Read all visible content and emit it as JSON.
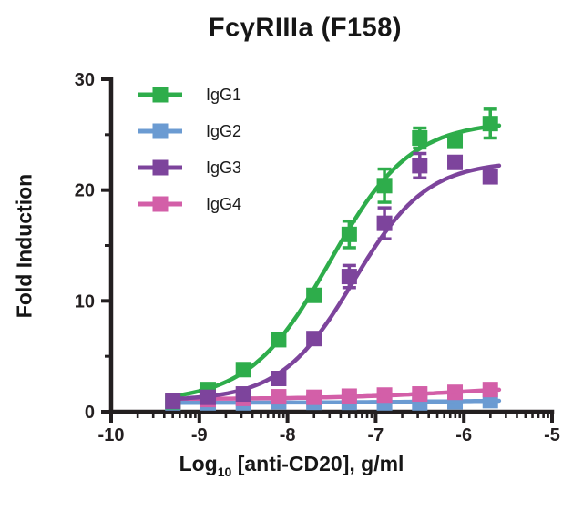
{
  "title": "FcγRIIIa (F158)",
  "axes": {
    "y_label": "Fold Induction",
    "x_label_prefix": "Log",
    "x_label_sub": "10",
    "x_label_rest": " [anti-CD20], g/ml"
  },
  "chart_data": {
    "type": "scatter",
    "title": "FcγRIIIa (F158)",
    "xlabel": "Log10 [anti-CD20], g/ml",
    "ylabel": "Fold Induction",
    "x_scale": "log10_exponent",
    "xlim": [
      -10,
      -5
    ],
    "ylim": [
      0,
      30
    ],
    "x_major_ticks": [
      -10,
      -9,
      -8,
      -7,
      -6,
      -5
    ],
    "x_tick_labels": [
      "-10",
      "-9",
      "-8",
      "-7",
      "-6",
      "-5"
    ],
    "y_major_ticks": [
      0,
      10,
      20,
      30
    ],
    "y_tick_labels": [
      "0",
      "10",
      "20",
      "30"
    ],
    "y_minor_ticks": [
      5,
      15,
      25
    ],
    "grid": false,
    "legend_position": "upper-left-inside",
    "axis_color": "#231f20",
    "x": [
      -9.3,
      -8.9,
      -8.5,
      -8.1,
      -7.7,
      -7.3,
      -6.9,
      -6.5,
      -6.1,
      -5.7
    ],
    "series": [
      {
        "name": "IgG1",
        "color": "#2ead4b",
        "values": [
          0.9,
          2.0,
          3.8,
          6.5,
          10.5,
          16.0,
          20.4,
          24.7,
          24.4,
          26.0
        ],
        "errors": [
          0,
          0,
          0,
          0,
          0,
          1.2,
          1.5,
          0.9,
          0,
          1.3
        ],
        "fit": {
          "bottom": 0.9,
          "top": 26.2,
          "logec50": -7.52,
          "hill": 0.95
        }
      },
      {
        "name": "IgG2",
        "color": "#6b9bd2",
        "values": [
          0.8,
          0.8,
          0.8,
          0.9,
          0.85,
          0.85,
          0.8,
          0.8,
          0.9,
          1.0
        ],
        "errors": [
          0,
          0,
          0,
          0,
          0,
          0,
          0,
          0,
          0,
          0
        ],
        "fit": {
          "bottom": 0.8,
          "top": 1.1,
          "logec50": -6.0,
          "hill": 0.5
        }
      },
      {
        "name": "IgG3",
        "color": "#7d449c",
        "values": [
          0.95,
          1.3,
          1.6,
          3.0,
          6.6,
          12.2,
          17.0,
          22.2,
          22.5,
          21.2
        ],
        "errors": [
          0,
          0,
          0,
          0,
          0,
          1.0,
          1.4,
          1.1,
          0,
          0
        ],
        "fit": {
          "bottom": 1.0,
          "top": 22.6,
          "logec50": -7.25,
          "hill": 1.05
        }
      },
      {
        "name": "IgG4",
        "color": "#d35fa8",
        "values": [
          1.0,
          1.1,
          1.2,
          1.35,
          1.3,
          1.4,
          1.5,
          1.6,
          1.75,
          2.0
        ],
        "errors": [
          0,
          0,
          0,
          0,
          0,
          0,
          0,
          0,
          0,
          0
        ],
        "fit": {
          "bottom": 1.15,
          "top": 2.4,
          "logec50": -6.1,
          "hill": 0.6
        }
      }
    ],
    "z_order": [
      "IgG2",
      "IgG4",
      "IgG1",
      "IgG3"
    ],
    "curve_x_range": [
      -9.33,
      -5.6
    ]
  }
}
